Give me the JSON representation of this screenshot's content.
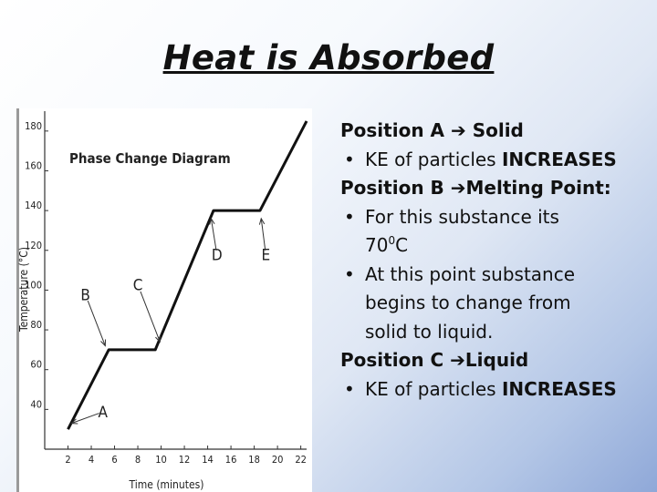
{
  "slide": {
    "title": "Heat is Absorbed"
  },
  "notes": [
    {
      "kind": "heading",
      "before": "Position A",
      "arrow": "➔",
      "after": " Solid"
    },
    {
      "kind": "bullet",
      "bullet": "•",
      "lead": "KE of particles ",
      "strong": "INCREASES"
    },
    {
      "kind": "heading",
      "before": "Position B ",
      "arrow": "➔",
      "after": "Melting Point:"
    },
    {
      "kind": "bullet",
      "bullet": "•",
      "lines": [
        "For this substance its",
        "70"
      ],
      "sup": "0",
      "tail": "C"
    },
    {
      "kind": "bullet",
      "bullet": "•",
      "lines": [
        "At this point substance",
        "begins to change from",
        "solid to liquid."
      ]
    },
    {
      "kind": "heading",
      "before": "Position C ",
      "arrow": "➔",
      "after": "Liquid"
    },
    {
      "kind": "bullet",
      "bullet": "•",
      "lead": "KE of particles ",
      "strong": "INCREASES"
    }
  ],
  "chart_data": {
    "type": "line",
    "title": "Phase Change Diagram",
    "xlabel": "Time (minutes)",
    "ylabel": "Temperature (°C)",
    "x_ticks": [
      "2",
      "4",
      "6",
      "8",
      "10",
      "12",
      "14",
      "16",
      "18",
      "20",
      "22"
    ],
    "y_ticks": [
      "40",
      "60",
      "80",
      "100",
      "120",
      "140",
      "160",
      "180"
    ],
    "xlim": [
      0,
      22.5
    ],
    "ylim": [
      20,
      190
    ],
    "series": [
      {
        "x": [
          2,
          5.5,
          9.5,
          14.5,
          18.5,
          22.5
        ],
        "y": [
          30,
          70,
          70,
          140,
          140,
          185
        ]
      }
    ],
    "annotations": [
      {
        "text": "A",
        "x": 5.0,
        "y": 36,
        "arrow_to": [
          2.3,
          33
        ]
      },
      {
        "text": "B",
        "x": 3.5,
        "y": 95,
        "arrow_to": [
          5.2,
          72
        ]
      },
      {
        "text": "C",
        "x": 8.0,
        "y": 100,
        "arrow_to": [
          9.9,
          74
        ]
      },
      {
        "text": "D",
        "x": 14.8,
        "y": 115,
        "arrow_to": [
          14.3,
          136
        ]
      },
      {
        "text": "E",
        "x": 19.0,
        "y": 115,
        "arrow_to": [
          18.6,
          136
        ]
      }
    ],
    "grid": false,
    "legend": "none"
  }
}
